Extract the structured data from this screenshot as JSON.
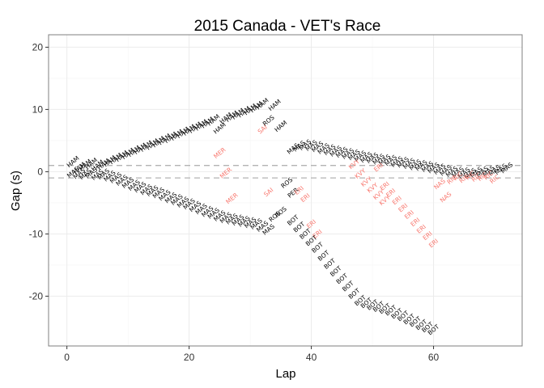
{
  "chart_data": {
    "type": "scatter",
    "title": "2015 Canada - VET's Race",
    "xlabel": "Lap",
    "ylabel": "Gap (s)",
    "xlim": [
      -3,
      74.5
    ],
    "ylim": [
      -28,
      22
    ],
    "xticks": [
      0,
      20,
      40,
      60
    ],
    "yticks": [
      -20,
      -10,
      0,
      10,
      20
    ],
    "hlines": [
      1,
      -1
    ],
    "grid": true,
    "colors": {
      "normal": "#000000",
      "highlight": "#f8766d",
      "hline": "#b3b3b3",
      "panel_border": "#7f7f7f",
      "grid_major": "#ebebeb",
      "grid_minor": "#f5f5f5"
    },
    "series": [
      {
        "driver": "HAM",
        "color": "normal",
        "points": [
          [
            1,
            1.6
          ],
          [
            2,
            0.6
          ],
          [
            3,
            1.1
          ],
          [
            4,
            1.3
          ],
          [
            5,
            1.0
          ],
          [
            6,
            1.2
          ],
          [
            7,
            1.7
          ],
          [
            8,
            2.1
          ],
          [
            9,
            2.5
          ],
          [
            10,
            2.9
          ],
          [
            11,
            3.3
          ],
          [
            12,
            3.7
          ],
          [
            13,
            4.1
          ],
          [
            14,
            4.4
          ],
          [
            15,
            4.8
          ],
          [
            16,
            5.2
          ],
          [
            17,
            5.5
          ],
          [
            18,
            5.9
          ],
          [
            19,
            6.3
          ],
          [
            20,
            6.7
          ],
          [
            21,
            7.1
          ],
          [
            22,
            7.5
          ],
          [
            23,
            7.9
          ],
          [
            24,
            8.3
          ],
          [
            25,
            7.0
          ],
          [
            26,
            8.6
          ],
          [
            27,
            8.9
          ],
          [
            28,
            9.3
          ],
          [
            29,
            9.6
          ],
          [
            30,
            10.0
          ],
          [
            31,
            10.4
          ],
          [
            32,
            10.9
          ],
          [
            34,
            10.7
          ],
          [
            35,
            7.3
          ]
        ]
      },
      {
        "driver": "ROS",
        "color": "normal",
        "points": [
          [
            33,
            8.2
          ],
          [
            36,
            -1.8
          ],
          [
            34,
            -7.2
          ],
          [
            35,
            -6.5
          ]
        ]
      },
      {
        "driver": "MAS",
        "color": "normal",
        "points": [
          [
            1,
            -0.1
          ],
          [
            2,
            -0.3
          ],
          [
            3,
            -0.4
          ],
          [
            4,
            -0.2
          ],
          [
            5,
            -0.5
          ],
          [
            6,
            -0.4
          ],
          [
            7,
            -0.7
          ],
          [
            8,
            -1.0
          ],
          [
            9,
            -1.4
          ],
          [
            10,
            -1.8
          ],
          [
            11,
            -2.2
          ],
          [
            12,
            -2.5
          ],
          [
            13,
            -2.9
          ],
          [
            14,
            -3.1
          ],
          [
            15,
            -3.4
          ],
          [
            16,
            -3.8
          ],
          [
            17,
            -4.2
          ],
          [
            18,
            -4.5
          ],
          [
            19,
            -4.9
          ],
          [
            20,
            -5.2
          ],
          [
            21,
            -5.6
          ],
          [
            22,
            -6.0
          ],
          [
            23,
            -6.4
          ],
          [
            24,
            -6.7
          ],
          [
            25,
            -7.1
          ],
          [
            26,
            -7.4
          ],
          [
            27,
            -7.6
          ],
          [
            28,
            -7.8
          ],
          [
            29,
            -8.0
          ],
          [
            30,
            -8.2
          ],
          [
            31,
            -8.4
          ],
          [
            32,
            -8.8
          ],
          [
            33,
            -9.3
          ],
          [
            37,
            3.7
          ],
          [
            38,
            4.1
          ],
          [
            39,
            4.3
          ],
          [
            40,
            4.2
          ],
          [
            41,
            4.0
          ],
          [
            42,
            3.7
          ],
          [
            43,
            3.5
          ],
          [
            44,
            3.3
          ],
          [
            45,
            3.1
          ],
          [
            46,
            2.9
          ],
          [
            47,
            2.7
          ],
          [
            48,
            2.5
          ],
          [
            49,
            2.3
          ],
          [
            50,
            2.2
          ],
          [
            51,
            2.0
          ],
          [
            52,
            1.9
          ],
          [
            53,
            1.8
          ],
          [
            54,
            1.6
          ],
          [
            55,
            1.5
          ],
          [
            56,
            1.3
          ],
          [
            57,
            1.1
          ],
          [
            58,
            1.0
          ],
          [
            59,
            0.8
          ],
          [
            60,
            0.6
          ],
          [
            61,
            0.4
          ],
          [
            62,
            0.2
          ],
          [
            63,
            0.0
          ],
          [
            64,
            -0.1
          ],
          [
            65,
            -0.2
          ],
          [
            66,
            -0.3
          ],
          [
            67,
            -0.1
          ],
          [
            68,
            0.0
          ],
          [
            69,
            0.1
          ],
          [
            70,
            0.2
          ],
          [
            71,
            0.4
          ],
          [
            72,
            0.6
          ]
        ]
      },
      {
        "driver": "MER",
        "color": "highlight",
        "points": [
          [
            25,
            3.0
          ],
          [
            26,
            -0.2
          ],
          [
            27,
            -4.3
          ]
        ]
      },
      {
        "driver": "SAI",
        "color": "highlight",
        "points": [
          [
            32,
            6.8
          ],
          [
            33,
            -3.3
          ]
        ]
      },
      {
        "driver": "PER",
        "color": "normal",
        "points": [
          [
            37,
            -3.4
          ]
        ]
      },
      {
        "driver": "ERI",
        "color": "highlight",
        "points": [
          [
            38,
            -3.0
          ],
          [
            39,
            -4.2
          ],
          [
            40,
            -8.4
          ],
          [
            41,
            -10.0
          ],
          [
            51,
            0.7
          ],
          [
            52,
            -2.3
          ],
          [
            53,
            -3.4
          ],
          [
            54,
            -4.6
          ],
          [
            55,
            -5.8
          ],
          [
            56,
            -6.9
          ],
          [
            57,
            -8.1
          ],
          [
            58,
            -9.2
          ],
          [
            59,
            -10.3
          ],
          [
            60,
            -11.5
          ]
        ]
      },
      {
        "driver": "BOT",
        "color": "normal",
        "points": [
          [
            37,
            -7.8
          ],
          [
            38,
            -8.9
          ],
          [
            39,
            -10.0
          ],
          [
            40,
            -11.1
          ],
          [
            41,
            -12.2
          ],
          [
            42,
            -13.5
          ],
          [
            43,
            -14.8
          ],
          [
            44,
            -16.0
          ],
          [
            45,
            -17.2
          ],
          [
            46,
            -18.4
          ],
          [
            47,
            -19.6
          ],
          [
            48,
            -20.7
          ],
          [
            49,
            -21.1
          ],
          [
            50,
            -21.4
          ],
          [
            51,
            -21.7
          ],
          [
            52,
            -22.0
          ],
          [
            53,
            -22.3
          ],
          [
            54,
            -22.8
          ],
          [
            55,
            -23.2
          ],
          [
            56,
            -23.7
          ],
          [
            57,
            -24.1
          ],
          [
            58,
            -24.6
          ],
          [
            59,
            -25.0
          ],
          [
            60,
            -25.4
          ]
        ]
      },
      {
        "driver": "KVY",
        "color": "highlight",
        "points": [
          [
            47,
            1.2
          ],
          [
            48,
            -0.3
          ],
          [
            49,
            -1.6
          ],
          [
            50,
            -2.6
          ],
          [
            51,
            -3.7
          ],
          [
            52,
            -4.6
          ]
        ]
      },
      {
        "driver": "NAS",
        "color": "highlight",
        "points": [
          [
            61,
            -2.0
          ],
          [
            62,
            -4.1
          ]
        ]
      },
      {
        "driver": "RIC",
        "color": "highlight",
        "points": [
          [
            63,
            -1.3
          ],
          [
            64,
            -0.7
          ],
          [
            65,
            -1.1
          ],
          [
            66,
            -0.6
          ],
          [
            67,
            -0.9
          ],
          [
            68,
            -0.8
          ],
          [
            69,
            -0.6
          ],
          [
            70,
            -1.2
          ]
        ]
      }
    ]
  }
}
